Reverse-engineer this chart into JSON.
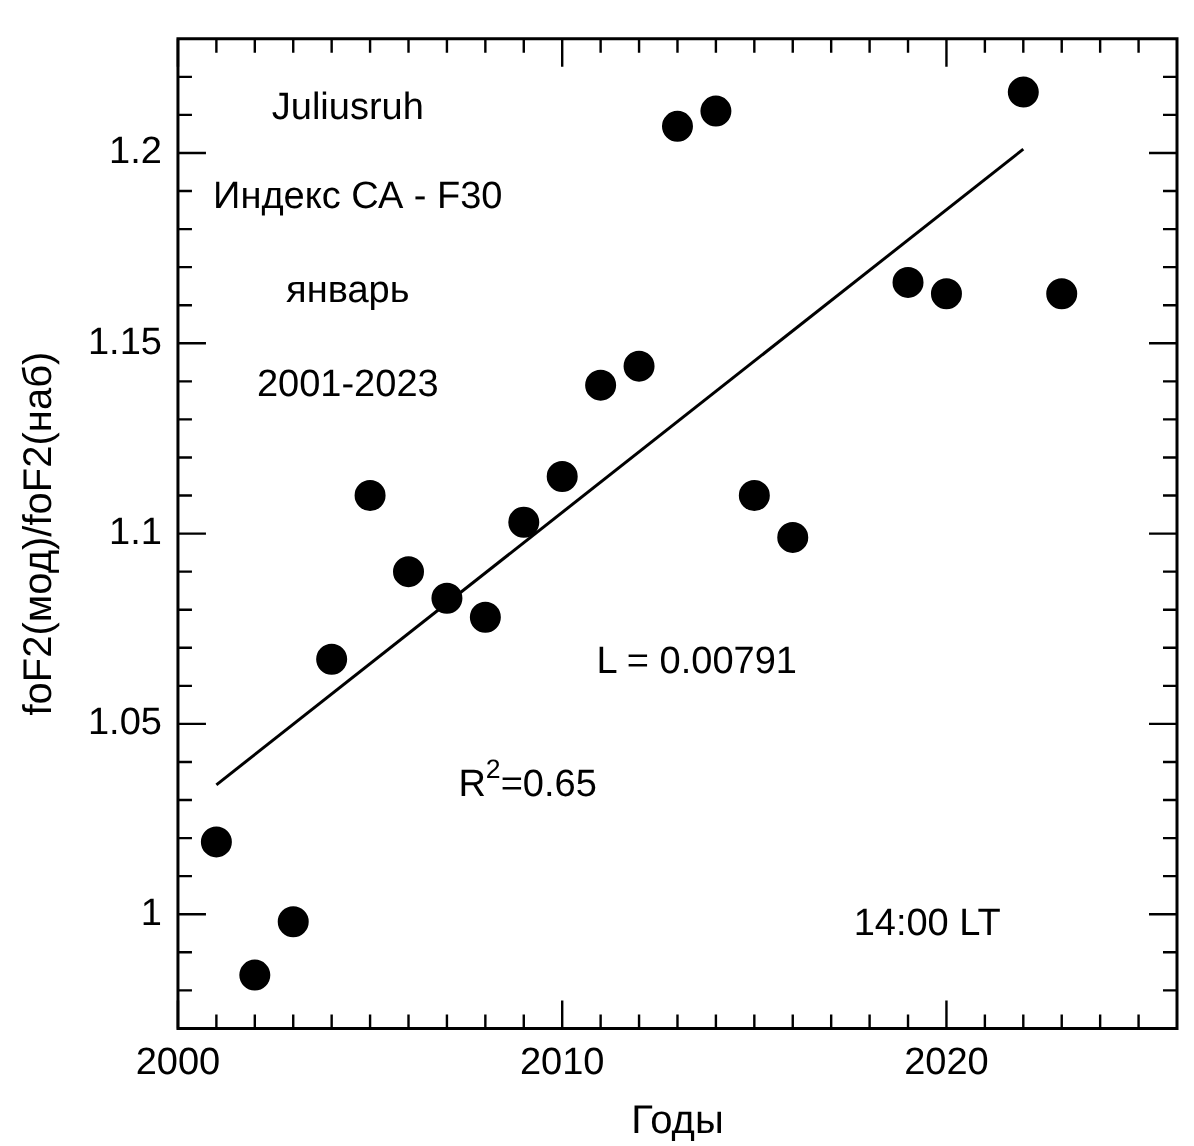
{
  "chart_data": {
    "type": "scatter",
    "xlabel": "Годы",
    "ylabel": "foF2(мод)/foF2(наб)",
    "xlim": [
      2000,
      2026
    ],
    "ylim": [
      0.97,
      1.23
    ],
    "xticks": [
      2000,
      {
        "value": 2001,
        "label": null
      },
      {
        "value": 2002,
        "label": null
      },
      {
        "value": 2003,
        "label": null
      },
      {
        "value": 2004,
        "label": null
      },
      {
        "value": 2005,
        "label": null
      },
      {
        "value": 2006,
        "label": null
      },
      {
        "value": 2007,
        "label": null
      },
      {
        "value": 2008,
        "label": null
      },
      {
        "value": 2009,
        "label": null
      },
      2010,
      {
        "value": 2011,
        "label": null
      },
      {
        "value": 2012,
        "label": null
      },
      {
        "value": 2013,
        "label": null
      },
      {
        "value": 2014,
        "label": null
      },
      {
        "value": 2015,
        "label": null
      },
      {
        "value": 2016,
        "label": null
      },
      {
        "value": 2017,
        "label": null
      },
      {
        "value": 2018,
        "label": null
      },
      {
        "value": 2019,
        "label": null
      },
      2020,
      {
        "value": 2021,
        "label": null
      },
      {
        "value": 2022,
        "label": null
      },
      {
        "value": 2023,
        "label": null
      },
      {
        "value": 2024,
        "label": null
      },
      {
        "value": 2025,
        "label": null
      }
    ],
    "yticks": [
      {
        "value": 0.98,
        "label": null
      },
      {
        "value": 0.99,
        "label": null
      },
      1,
      {
        "value": 1.01,
        "label": null
      },
      {
        "value": 1.02,
        "label": null
      },
      {
        "value": 1.03,
        "label": null
      },
      {
        "value": 1.04,
        "label": null
      },
      1.05,
      {
        "value": 1.06,
        "label": null
      },
      {
        "value": 1.07,
        "label": null
      },
      {
        "value": 1.08,
        "label": null
      },
      {
        "value": 1.09,
        "label": null
      },
      1.1,
      {
        "value": 1.11,
        "label": null
      },
      {
        "value": 1.12,
        "label": null
      },
      {
        "value": 1.13,
        "label": null
      },
      {
        "value": 1.14,
        "label": null
      },
      1.15,
      {
        "value": 1.16,
        "label": null
      },
      {
        "value": 1.17,
        "label": null
      },
      {
        "value": 1.18,
        "label": null
      },
      {
        "value": 1.19,
        "label": null
      },
      1.2,
      {
        "value": 1.21,
        "label": null
      },
      {
        "value": 1.22,
        "label": null
      }
    ],
    "grid": false,
    "legend": false,
    "marker": "circle",
    "series": [
      {
        "color": "#000000",
        "x": [
          2001,
          2002,
          2003,
          2004,
          2005,
          2006,
          2007,
          2008,
          2009,
          2010,
          2011,
          2012,
          2013,
          2014,
          2015,
          2016,
          2019,
          2020,
          2022,
          2023
        ],
        "values": [
          1.019,
          0.984,
          0.998,
          1.067,
          1.11,
          1.09,
          1.083,
          1.078,
          1.103,
          1.115,
          1.139,
          1.144,
          1.207,
          1.211,
          1.11,
          1.099,
          1.166,
          1.163,
          1.216,
          1.163
        ]
      },
      {
        "type": "line",
        "color": "#000000",
        "marker": "none",
        "x": [
          2001,
          2022
        ],
        "values": [
          1.034,
          1.201
        ]
      }
    ],
    "annotations": [
      "Juliusruh",
      "Индекс СА - F30",
      "январь",
      "2001-2023",
      "L = 0.00791",
      "R$^{2}$=0.65",
      "14:00 LT"
    ]
  }
}
